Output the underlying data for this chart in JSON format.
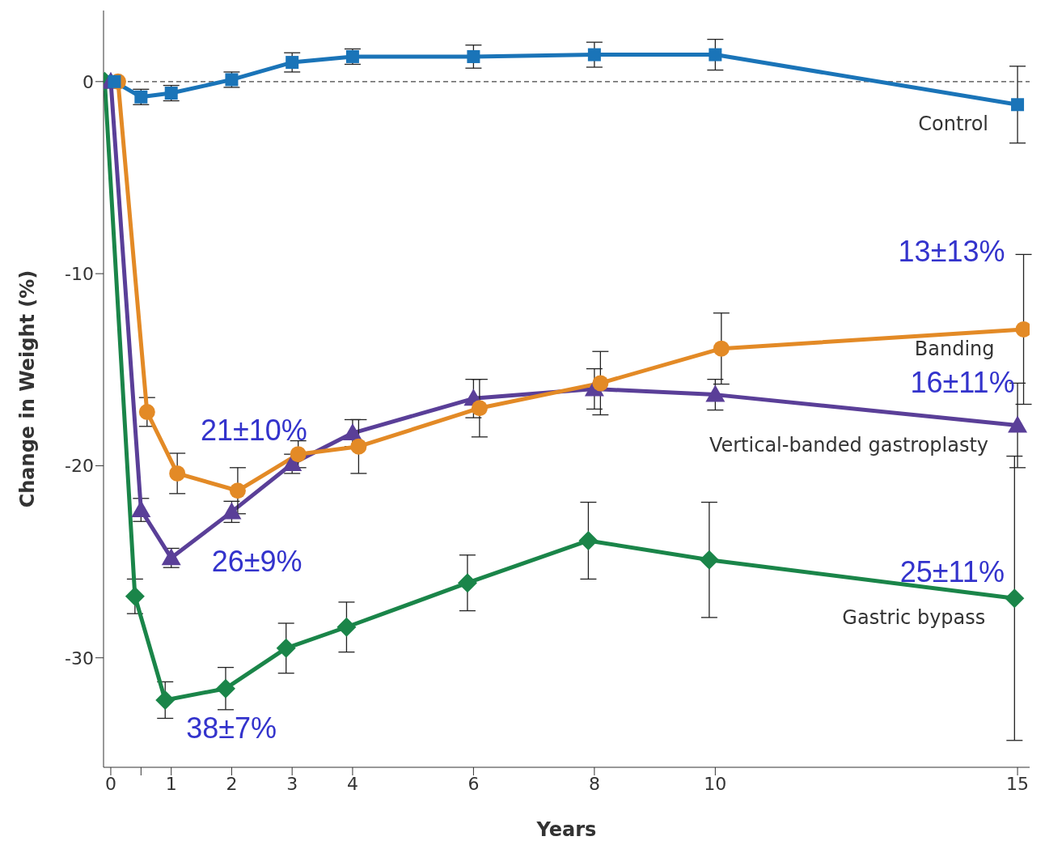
{
  "chart_data": {
    "type": "line",
    "xlabel": "Years",
    "ylabel": "Change in Weight (%)",
    "xlim": [
      -0.12,
      15.2
    ],
    "xticks": [
      0,
      {
        "value": 0.5,
        "label": null
      },
      1,
      2,
      3,
      4,
      6,
      8,
      10,
      15
    ],
    "ylim": [
      -35.7,
      3.7
    ],
    "yticks": [
      -30,
      -20,
      -10,
      0
    ],
    "line_style": "solid",
    "ref_lines": [
      {
        "axis": "y",
        "value": 0,
        "line_style": "dashed",
        "color": "#444444"
      }
    ],
    "series": [
      {
        "name": "Control",
        "color": "#1a74b8",
        "marker": "square",
        "x": [
          0.06,
          0.5,
          1,
          2,
          3,
          4,
          6,
          8,
          10,
          15
        ],
        "values": [
          0,
          -0.8,
          -0.6,
          0.1,
          1.0,
          1.3,
          1.3,
          1.4,
          1.4,
          -1.2
        ],
        "errors": [
          null,
          0.4,
          0.4,
          0.4,
          0.5,
          0.4,
          0.6,
          0.65,
          0.8,
          2.0
        ]
      },
      {
        "name": "Banding",
        "color": "#e38a26",
        "marker": "circle",
        "x": [
          0.12,
          0.6,
          1.1,
          2.1,
          3.1,
          4.1,
          6.1,
          8.1,
          10.1,
          15.1
        ],
        "values": [
          0,
          -17.2,
          -20.4,
          -21.3,
          -19.4,
          -19.0,
          -17.0,
          -15.7,
          -13.9,
          -12.9
        ],
        "errors": [
          null,
          0.75,
          1.05,
          1.2,
          0.7,
          1.4,
          1.5,
          1.65,
          1.85,
          3.9
        ]
      },
      {
        "name": "Vertical-banded gastroplasty",
        "color": "#5a3f98",
        "marker": "triangle",
        "x": [
          0,
          0.5,
          1,
          2,
          3,
          4,
          6,
          8,
          10,
          15
        ],
        "values": [
          0,
          -22.3,
          -24.8,
          -22.4,
          -19.9,
          -18.3,
          -16.5,
          -16.0,
          -16.3,
          -17.9
        ],
        "errors": [
          null,
          0.6,
          0.5,
          0.55,
          0.5,
          0.7,
          1.0,
          1.05,
          0.8,
          2.2
        ]
      },
      {
        "name": "Gastric bypass",
        "color": "#1a8549",
        "marker": "diamond",
        "x": [
          -0.1,
          0.4,
          0.9,
          1.9,
          2.9,
          3.9,
          5.9,
          7.9,
          9.9,
          14.95
        ],
        "values": [
          0,
          -26.8,
          -32.2,
          -31.6,
          -29.5,
          -28.4,
          -26.1,
          -23.9,
          -24.9,
          -26.9
        ],
        "errors": [
          null,
          0.9,
          0.95,
          1.1,
          1.3,
          1.3,
          1.45,
          2.0,
          3.0,
          7.4
        ]
      }
    ],
    "annotations": [
      {
        "text": "21±10%",
        "x": 2.1,
        "y": -21.3
      },
      {
        "text": "26±9%",
        "x": 1,
        "y": -24.8
      },
      {
        "text": "38±7%",
        "x": 0.9,
        "y": -32.2
      },
      {
        "text": "13±13%",
        "x": 15.1,
        "y": -12.9
      },
      {
        "text": "16±11%",
        "x": 15,
        "y": -17.9
      },
      {
        "text": "25±11%",
        "x": 14.95,
        "y": -26.9
      }
    ]
  }
}
